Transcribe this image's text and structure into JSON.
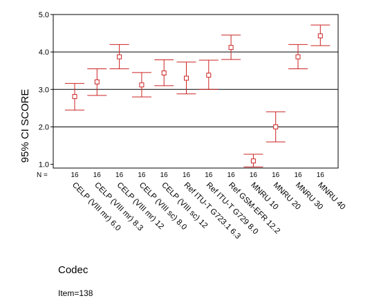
{
  "chart_data": {
    "type": "errorbar",
    "ylabel": "95% CI SCORE",
    "xlabel": "Codec",
    "ylim": [
      0.9,
      5.0
    ],
    "yticks": [
      "1.0",
      "2.0",
      "3.0",
      "4.0",
      "5.0"
    ],
    "gridlines_y": [
      2.0,
      3.0,
      4.0
    ],
    "n_label": "N =",
    "categories": [
      "CELP (VIII mr) 6.0",
      "CELP (VIII mr) 8.3",
      "CELP (VIII mr) 12",
      "CELP (VIII sc) 8.0",
      "CELP (VIII sc) 12",
      "Ref ITU-T G723.1 6.3",
      "Ref ITU-T G729 8.0",
      "Ref GSM-EFR 12.2",
      "MNRU 10",
      "MNRU 20",
      "MNRU 30",
      "MNRU 40"
    ],
    "n": [
      "16",
      "16",
      "16",
      "16",
      "16",
      "16",
      "16",
      "16",
      "16",
      "16",
      "16",
      "16"
    ],
    "mean": [
      2.81,
      3.2,
      3.87,
      3.12,
      3.44,
      3.3,
      3.38,
      4.12,
      1.09,
      2.0,
      3.87,
      4.43
    ],
    "upper": [
      3.16,
      3.55,
      4.2,
      3.45,
      3.79,
      3.73,
      3.78,
      4.45,
      1.27,
      2.4,
      4.2,
      4.72
    ],
    "lower": [
      2.45,
      2.84,
      3.55,
      2.8,
      3.1,
      2.88,
      3.0,
      3.8,
      0.93,
      1.6,
      3.55,
      4.17
    ],
    "color": "#cc2222",
    "grid": true,
    "legend": "none"
  },
  "footer": {
    "item": "Item=138"
  }
}
